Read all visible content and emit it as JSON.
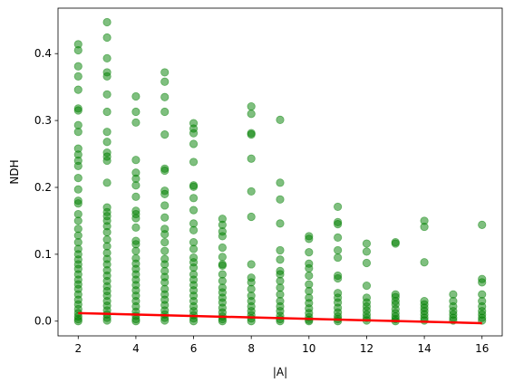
{
  "chart_data": {
    "type": "scatter",
    "title": "",
    "xlabel": "|A|",
    "ylabel": "NDH",
    "xlim": [
      1.3,
      16.7
    ],
    "ylim": [
      -0.022,
      0.468
    ],
    "xticks": [
      2,
      4,
      6,
      8,
      10,
      12,
      14,
      16
    ],
    "xtick_labels": [
      "2",
      "4",
      "6",
      "8",
      "10",
      "12",
      "14",
      "16"
    ],
    "yticks": [
      0.0,
      0.1,
      0.2,
      0.3,
      0.4
    ],
    "ytick_labels": [
      "0.0",
      "0.1",
      "0.2",
      "0.3",
      "0.4"
    ],
    "grid": false,
    "series": [
      {
        "kind": "scatter",
        "color": "#008000",
        "opacity": 0.5,
        "points": [
          [
            2,
            0.414
          ],
          [
            2,
            0.405
          ],
          [
            2,
            0.381
          ],
          [
            2,
            0.366
          ],
          [
            2,
            0.346
          ],
          [
            2,
            0.318
          ],
          [
            2,
            0.315
          ],
          [
            2,
            0.293
          ],
          [
            2,
            0.283
          ],
          [
            2,
            0.258
          ],
          [
            2,
            0.249
          ],
          [
            2,
            0.24
          ],
          [
            2,
            0.232
          ],
          [
            2,
            0.214
          ],
          [
            2,
            0.197
          ],
          [
            2,
            0.18
          ],
          [
            2,
            0.176
          ],
          [
            2,
            0.16
          ],
          [
            2,
            0.15
          ],
          [
            2,
            0.138
          ],
          [
            2,
            0.128
          ],
          [
            2,
            0.118
          ],
          [
            2,
            0.108
          ],
          [
            2,
            0.1
          ],
          [
            2,
            0.092
          ],
          [
            2,
            0.085
          ],
          [
            2,
            0.078
          ],
          [
            2,
            0.07
          ],
          [
            2,
            0.062
          ],
          [
            2,
            0.055
          ],
          [
            2,
            0.048
          ],
          [
            2,
            0.04
          ],
          [
            2,
            0.032
          ],
          [
            2,
            0.025
          ],
          [
            2,
            0.018
          ],
          [
            2,
            0.012
          ],
          [
            2,
            0.007
          ],
          [
            2,
            0.003
          ],
          [
            2,
            0.0
          ],
          [
            3,
            0.447
          ],
          [
            3,
            0.424
          ],
          [
            3,
            0.393
          ],
          [
            3,
            0.372
          ],
          [
            3,
            0.366
          ],
          [
            3,
            0.339
          ],
          [
            3,
            0.313
          ],
          [
            3,
            0.283
          ],
          [
            3,
            0.268
          ],
          [
            3,
            0.252
          ],
          [
            3,
            0.246
          ],
          [
            3,
            0.24
          ],
          [
            3,
            0.207
          ],
          [
            3,
            0.17
          ],
          [
            3,
            0.163
          ],
          [
            3,
            0.157
          ],
          [
            3,
            0.15
          ],
          [
            3,
            0.142
          ],
          [
            3,
            0.133
          ],
          [
            3,
            0.122
          ],
          [
            3,
            0.112
          ],
          [
            3,
            0.102
          ],
          [
            3,
            0.093
          ],
          [
            3,
            0.085
          ],
          [
            3,
            0.076
          ],
          [
            3,
            0.068
          ],
          [
            3,
            0.06
          ],
          [
            3,
            0.052
          ],
          [
            3,
            0.045
          ],
          [
            3,
            0.038
          ],
          [
            3,
            0.03
          ],
          [
            3,
            0.023
          ],
          [
            3,
            0.016
          ],
          [
            3,
            0.01
          ],
          [
            3,
            0.005
          ],
          [
            3,
            0.001
          ],
          [
            4,
            0.336
          ],
          [
            4,
            0.313
          ],
          [
            4,
            0.297
          ],
          [
            4,
            0.241
          ],
          [
            4,
            0.222
          ],
          [
            4,
            0.213
          ],
          [
            4,
            0.203
          ],
          [
            4,
            0.186
          ],
          [
            4,
            0.165
          ],
          [
            4,
            0.16
          ],
          [
            4,
            0.154
          ],
          [
            4,
            0.14
          ],
          [
            4,
            0.12
          ],
          [
            4,
            0.115
          ],
          [
            4,
            0.105
          ],
          [
            4,
            0.094
          ],
          [
            4,
            0.086
          ],
          [
            4,
            0.078
          ],
          [
            4,
            0.07
          ],
          [
            4,
            0.062
          ],
          [
            4,
            0.054
          ],
          [
            4,
            0.046
          ],
          [
            4,
            0.038
          ],
          [
            4,
            0.03
          ],
          [
            4,
            0.022
          ],
          [
            4,
            0.014
          ],
          [
            4,
            0.008
          ],
          [
            4,
            0.003
          ],
          [
            4,
            0.0
          ],
          [
            5,
            0.372
          ],
          [
            5,
            0.358
          ],
          [
            5,
            0.335
          ],
          [
            5,
            0.313
          ],
          [
            5,
            0.279
          ],
          [
            5,
            0.228
          ],
          [
            5,
            0.225
          ],
          [
            5,
            0.195
          ],
          [
            5,
            0.19
          ],
          [
            5,
            0.173
          ],
          [
            5,
            0.155
          ],
          [
            5,
            0.138
          ],
          [
            5,
            0.13
          ],
          [
            5,
            0.118
          ],
          [
            5,
            0.105
          ],
          [
            5,
            0.093
          ],
          [
            5,
            0.085
          ],
          [
            5,
            0.075
          ],
          [
            5,
            0.066
          ],
          [
            5,
            0.058
          ],
          [
            5,
            0.048
          ],
          [
            5,
            0.04
          ],
          [
            5,
            0.032
          ],
          [
            5,
            0.024
          ],
          [
            5,
            0.016
          ],
          [
            5,
            0.01
          ],
          [
            5,
            0.005
          ],
          [
            5,
            0.001
          ],
          [
            6,
            0.296
          ],
          [
            6,
            0.288
          ],
          [
            6,
            0.281
          ],
          [
            6,
            0.265
          ],
          [
            6,
            0.238
          ],
          [
            6,
            0.203
          ],
          [
            6,
            0.201
          ],
          [
            6,
            0.184
          ],
          [
            6,
            0.166
          ],
          [
            6,
            0.146
          ],
          [
            6,
            0.136
          ],
          [
            6,
            0.118
          ],
          [
            6,
            0.108
          ],
          [
            6,
            0.095
          ],
          [
            6,
            0.088
          ],
          [
            6,
            0.08
          ],
          [
            6,
            0.07
          ],
          [
            6,
            0.062
          ],
          [
            6,
            0.054
          ],
          [
            6,
            0.046
          ],
          [
            6,
            0.038
          ],
          [
            6,
            0.03
          ],
          [
            6,
            0.022
          ],
          [
            6,
            0.015
          ],
          [
            6,
            0.009
          ],
          [
            6,
            0.004
          ],
          [
            6,
            0.0
          ],
          [
            7,
            0.153
          ],
          [
            7,
            0.144
          ],
          [
            7,
            0.134
          ],
          [
            7,
            0.127
          ],
          [
            7,
            0.11
          ],
          [
            7,
            0.096
          ],
          [
            7,
            0.085
          ],
          [
            7,
            0.083
          ],
          [
            7,
            0.07
          ],
          [
            7,
            0.06
          ],
          [
            7,
            0.05
          ],
          [
            7,
            0.043
          ],
          [
            7,
            0.035
          ],
          [
            7,
            0.028
          ],
          [
            7,
            0.02
          ],
          [
            7,
            0.013
          ],
          [
            7,
            0.007
          ],
          [
            7,
            0.003
          ],
          [
            7,
            0.0
          ],
          [
            8,
            0.321
          ],
          [
            8,
            0.31
          ],
          [
            8,
            0.281
          ],
          [
            8,
            0.279
          ],
          [
            8,
            0.243
          ],
          [
            8,
            0.194
          ],
          [
            8,
            0.156
          ],
          [
            8,
            0.085
          ],
          [
            8,
            0.065
          ],
          [
            8,
            0.058
          ],
          [
            8,
            0.048
          ],
          [
            8,
            0.038
          ],
          [
            8,
            0.03
          ],
          [
            8,
            0.022
          ],
          [
            8,
            0.015
          ],
          [
            8,
            0.009
          ],
          [
            8,
            0.004
          ],
          [
            8,
            0.0
          ],
          [
            9,
            0.301
          ],
          [
            9,
            0.207
          ],
          [
            9,
            0.182
          ],
          [
            9,
            0.146
          ],
          [
            9,
            0.106
          ],
          [
            9,
            0.092
          ],
          [
            9,
            0.075
          ],
          [
            9,
            0.07
          ],
          [
            9,
            0.06
          ],
          [
            9,
            0.05
          ],
          [
            9,
            0.04
          ],
          [
            9,
            0.03
          ],
          [
            9,
            0.022
          ],
          [
            9,
            0.015
          ],
          [
            9,
            0.008
          ],
          [
            9,
            0.003
          ],
          [
            9,
            0.0
          ],
          [
            10,
            0.127
          ],
          [
            10,
            0.123
          ],
          [
            10,
            0.103
          ],
          [
            10,
            0.086
          ],
          [
            10,
            0.079
          ],
          [
            10,
            0.068
          ],
          [
            10,
            0.055
          ],
          [
            10,
            0.045
          ],
          [
            10,
            0.035
          ],
          [
            10,
            0.027
          ],
          [
            10,
            0.019
          ],
          [
            10,
            0.012
          ],
          [
            10,
            0.006
          ],
          [
            10,
            0.002
          ],
          [
            10,
            0.0
          ],
          [
            11,
            0.171
          ],
          [
            11,
            0.148
          ],
          [
            11,
            0.145
          ],
          [
            11,
            0.125
          ],
          [
            11,
            0.106
          ],
          [
            11,
            0.095
          ],
          [
            11,
            0.068
          ],
          [
            11,
            0.064
          ],
          [
            11,
            0.042
          ],
          [
            11,
            0.035
          ],
          [
            11,
            0.028
          ],
          [
            11,
            0.02
          ],
          [
            11,
            0.013
          ],
          [
            11,
            0.007
          ],
          [
            11,
            0.003
          ],
          [
            11,
            0.0
          ],
          [
            12,
            0.116
          ],
          [
            12,
            0.104
          ],
          [
            12,
            0.087
          ],
          [
            12,
            0.053
          ],
          [
            12,
            0.035
          ],
          [
            12,
            0.028
          ],
          [
            12,
            0.022
          ],
          [
            12,
            0.016
          ],
          [
            12,
            0.01
          ],
          [
            12,
            0.005
          ],
          [
            12,
            0.001
          ],
          [
            13,
            0.118
          ],
          [
            13,
            0.116
          ],
          [
            13,
            0.04
          ],
          [
            13,
            0.036
          ],
          [
            13,
            0.03
          ],
          [
            13,
            0.025
          ],
          [
            13,
            0.018
          ],
          [
            13,
            0.012
          ],
          [
            13,
            0.007
          ],
          [
            13,
            0.003
          ],
          [
            13,
            0.0
          ],
          [
            14,
            0.15
          ],
          [
            14,
            0.141
          ],
          [
            14,
            0.088
          ],
          [
            14,
            0.03
          ],
          [
            14,
            0.025
          ],
          [
            14,
            0.02
          ],
          [
            14,
            0.015
          ],
          [
            14,
            0.01
          ],
          [
            14,
            0.005
          ],
          [
            14,
            0.001
          ],
          [
            15,
            0.04
          ],
          [
            15,
            0.03
          ],
          [
            15,
            0.022
          ],
          [
            15,
            0.015
          ],
          [
            15,
            0.01
          ],
          [
            15,
            0.005
          ],
          [
            15,
            0.001
          ],
          [
            16,
            0.144
          ],
          [
            16,
            0.063
          ],
          [
            16,
            0.058
          ],
          [
            16,
            0.04
          ],
          [
            16,
            0.03
          ],
          [
            16,
            0.022
          ],
          [
            16,
            0.015
          ],
          [
            16,
            0.01
          ],
          [
            16,
            0.005
          ],
          [
            16,
            0.001
          ]
        ]
      },
      {
        "kind": "line",
        "color": "#ff0000",
        "x": [
          2,
          16
        ],
        "y": [
          0.012,
          -0.003
        ]
      }
    ]
  }
}
